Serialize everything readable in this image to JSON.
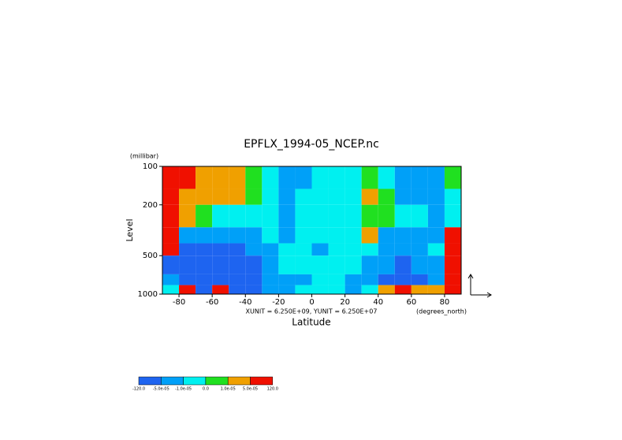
{
  "chart_data": {
    "type": "contour",
    "title": "EPFLX_1994-05_NCEP.nc",
    "ylabel": "Level",
    "yunit": "(millibar)",
    "xlabel": "Latitude",
    "xunit": "(degrees_north)",
    "vector_note": "XUNIT = 6.250E+09, YUNIT = 6.250E+07",
    "xlim": [
      -90,
      90
    ],
    "ylim": [
      100,
      1000
    ],
    "log_y": true,
    "y_inverted": true,
    "xticks": [
      -80,
      -60,
      -40,
      -20,
      0,
      20,
      40,
      60,
      80
    ],
    "yticks": [
      100,
      200,
      500,
      1000
    ],
    "x_edges": [
      -90,
      -80,
      -70,
      -60,
      -50,
      -40,
      -30,
      -20,
      -10,
      0,
      10,
      20,
      30,
      40,
      50,
      60,
      70,
      80,
      90
    ],
    "y_edges": [
      100,
      150,
      200,
      300,
      400,
      500,
      700,
      850,
      1000
    ],
    "z": [
      [
        0.0001,
        0.0001,
        3e-05,
        3e-05,
        3e-05,
        5e-06,
        -5e-06,
        -3e-05,
        -3e-05,
        -5e-06,
        -5e-06,
        -5e-06,
        5e-06,
        -5e-06,
        -3e-05,
        -3e-05,
        -3e-05,
        5e-06
      ],
      [
        0.0001,
        3e-05,
        3e-05,
        3e-05,
        3e-05,
        5e-06,
        -5e-06,
        -3e-05,
        -5e-06,
        -5e-06,
        -5e-06,
        -5e-06,
        3e-05,
        5e-06,
        -3e-05,
        -3e-05,
        -3e-05,
        -5e-06
      ],
      [
        0.0001,
        3e-05,
        5e-06,
        -5e-06,
        -5e-06,
        -5e-06,
        -5e-06,
        -3e-05,
        -5e-06,
        -5e-06,
        -5e-06,
        -5e-06,
        5e-06,
        5e-06,
        -5e-06,
        -5e-06,
        -3e-05,
        -5e-06
      ],
      [
        0.0001,
        -3e-05,
        -3e-05,
        -3e-05,
        -3e-05,
        -3e-05,
        -5e-06,
        -3e-05,
        -5e-06,
        -5e-06,
        -5e-06,
        -5e-06,
        3e-05,
        -3e-05,
        -3e-05,
        -3e-05,
        -3e-05,
        0.0001
      ],
      [
        0.0001,
        -0.0001,
        -0.0001,
        -0.0001,
        -0.0001,
        -3e-05,
        -3e-05,
        -5e-06,
        -5e-06,
        -3e-05,
        -5e-06,
        -5e-06,
        -5e-06,
        -3e-05,
        -3e-05,
        -3e-05,
        -5e-06,
        0.0001
      ],
      [
        -0.0001,
        -0.0001,
        -0.0001,
        -0.0001,
        -0.0001,
        -0.0001,
        -3e-05,
        -5e-06,
        -5e-06,
        -5e-06,
        -5e-06,
        -5e-06,
        -3e-05,
        -3e-05,
        -0.0001,
        -3e-05,
        -3e-05,
        0.0001
      ],
      [
        -3e-05,
        -0.0001,
        -0.0001,
        -0.0001,
        -0.0001,
        -0.0001,
        -3e-05,
        -3e-05,
        -3e-05,
        -5e-06,
        -5e-06,
        -3e-05,
        -3e-05,
        -0.0001,
        -0.0001,
        -0.0001,
        -3e-05,
        0.0001
      ],
      [
        -5e-06,
        0.0001,
        -0.0001,
        0.0001,
        -0.0001,
        -0.0001,
        -3e-05,
        -3e-05,
        -5e-06,
        -5e-06,
        -5e-06,
        -3e-05,
        -5e-06,
        3e-05,
        0.0001,
        3e-05,
        3e-05,
        0.0001
      ]
    ],
    "colorbar": {
      "levels": [
        {
          "value": -120,
          "label": "-120.0"
        },
        {
          "value": -5e-05,
          "label": "-5.0e-05"
        },
        {
          "value": -1e-05,
          "label": "-1.0e-05"
        },
        {
          "value": 0,
          "label": "0.0"
        },
        {
          "value": 1e-05,
          "label": "1.0e-05"
        },
        {
          "value": 5e-05,
          "label": "5.0e-05"
        },
        {
          "value": 120,
          "label": "120.0"
        }
      ],
      "colors": [
        "#1e64f0",
        "#00a0f8",
        "#00f0f0",
        "#20e020",
        "#f0a000",
        "#f01000"
      ]
    }
  }
}
